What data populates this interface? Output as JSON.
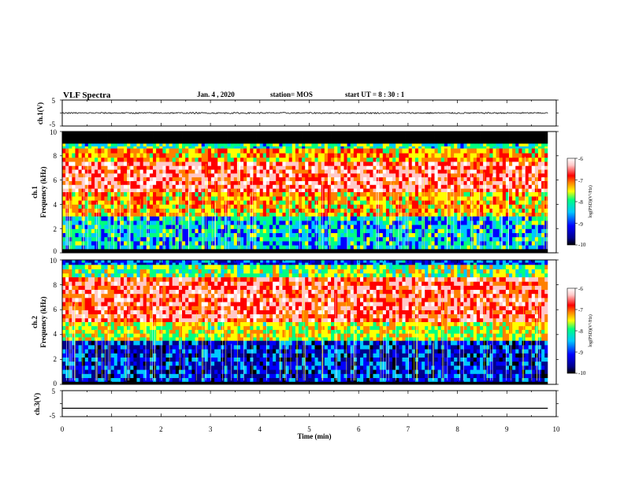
{
  "header": {
    "title": "VLF Spectra",
    "date": "Jan. 4 , 2020",
    "station": "station= MOS",
    "start": "start UT = 8 : 30 : 1"
  },
  "chart_data": [
    {
      "type": "line",
      "panel": "ch1-waveform",
      "ylabel": "ch.1(V)",
      "ylim": [
        -5,
        5
      ],
      "yticks": [
        "5",
        "-5"
      ],
      "xlim": [
        0,
        10
      ],
      "trace_level": 0,
      "note": "noisy flat trace near 0 V"
    },
    {
      "type": "heatmap",
      "panel": "ch1-spectrogram",
      "ylabel": "ch.1\nFrequency (kHz)",
      "ylabel_lines": [
        "ch.1",
        "Frequency (kHz)"
      ],
      "xlim": [
        0,
        9.83
      ],
      "ylim": [
        0,
        10
      ],
      "yticks": [
        "0",
        "2",
        "4",
        "6",
        "8",
        "10"
      ],
      "bands_khz": [
        {
          "from": 9.0,
          "to": 10.0,
          "level": -11
        },
        {
          "from": 8.6,
          "to": 9.0,
          "level": -8.5
        },
        {
          "from": 7.5,
          "to": 8.6,
          "level": -7.5
        },
        {
          "from": 5.0,
          "to": 7.5,
          "level": -6.6
        },
        {
          "from": 3.0,
          "to": 5.0,
          "level": -7.6
        },
        {
          "from": 0.3,
          "to": 3.0,
          "level": -8.8
        },
        {
          "from": 0.0,
          "to": 0.3,
          "level": -11
        }
      ],
      "colorbar": {
        "label": "log(PSD)(V²/Hz)",
        "range": [
          -10,
          -6
        ],
        "ticks": [
          "-6",
          "-7",
          "-8",
          "-9",
          "-10"
        ]
      }
    },
    {
      "type": "heatmap",
      "panel": "ch2-spectrogram",
      "ylabel": "ch.2\nFrequency (kHz)",
      "ylabel_lines": [
        "ch.2",
        "Frequency (kHz)"
      ],
      "xlim": [
        0,
        9.83
      ],
      "ylim": [
        0,
        10
      ],
      "yticks": [
        "0",
        "2",
        "4",
        "6",
        "8",
        "10"
      ],
      "bands_khz": [
        {
          "from": 9.6,
          "to": 10.0,
          "level": -9.4
        },
        {
          "from": 8.6,
          "to": 9.6,
          "level": -8.2
        },
        {
          "from": 5.0,
          "to": 8.6,
          "level": -6.7
        },
        {
          "from": 3.5,
          "to": 5.0,
          "level": -7.9
        },
        {
          "from": 0.2,
          "to": 3.5,
          "level": -9.6
        },
        {
          "from": 0.0,
          "to": 0.2,
          "level": -11
        }
      ],
      "colorbar": {
        "label": "log(PSD)(V²/Hz)",
        "range": [
          -10,
          -6
        ],
        "ticks": [
          "-6",
          "-7",
          "-8",
          "-9",
          "-10"
        ]
      }
    },
    {
      "type": "line",
      "panel": "ch3-waveform",
      "ylabel": "ch.3(V)",
      "ylim": [
        -5,
        5
      ],
      "yticks": [
        "5",
        "-5"
      ],
      "xlim": [
        0,
        10
      ],
      "trace_level": -1.8,
      "note": "flat trace"
    }
  ],
  "xaxis": {
    "label": "Time (min)",
    "ticks": [
      "0",
      "1",
      "2",
      "3",
      "4",
      "5",
      "6",
      "7",
      "8",
      "9",
      "10"
    ]
  },
  "colors": {
    "colormap": [
      "#000000",
      "#00008b",
      "#0000ff",
      "#00c8ff",
      "#00ff80",
      "#ffff00",
      "#ff8000",
      "#ff0000",
      "#ffc8c8",
      "#ffffff"
    ]
  }
}
